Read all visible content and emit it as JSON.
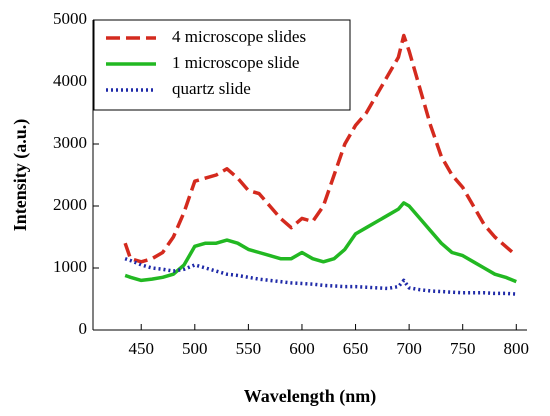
{
  "chart_data": {
    "type": "line",
    "xlabel": "Wavelength (nm)",
    "ylabel": "Intensity (a.u.)",
    "x": [
      435,
      440,
      450,
      460,
      470,
      480,
      490,
      500,
      510,
      520,
      530,
      540,
      550,
      560,
      570,
      580,
      590,
      600,
      610,
      620,
      630,
      640,
      650,
      660,
      670,
      680,
      690,
      695,
      700,
      710,
      720,
      730,
      740,
      750,
      760,
      770,
      780,
      790,
      800
    ],
    "series": [
      {
        "name": "4 microscope slides",
        "color": "#d42a1e",
        "dash": "14 6",
        "values": [
          1400,
          1150,
          1100,
          1150,
          1250,
          1500,
          1900,
          2400,
          2450,
          2500,
          2600,
          2450,
          2250,
          2200,
          2000,
          1800,
          1650,
          1800,
          1750,
          2000,
          2500,
          3000,
          3300,
          3500,
          3800,
          4100,
          4400,
          4750,
          4500,
          3900,
          3300,
          2800,
          2500,
          2300,
          2000,
          1700,
          1500,
          1350,
          1200
        ]
      },
      {
        "name": "1 microscope slide",
        "color": "#22b822",
        "dash": "none",
        "values": [
          880,
          850,
          800,
          820,
          850,
          900,
          1050,
          1350,
          1400,
          1400,
          1450,
          1400,
          1300,
          1250,
          1200,
          1150,
          1150,
          1250,
          1150,
          1100,
          1150,
          1300,
          1550,
          1650,
          1750,
          1850,
          1950,
          2050,
          2000,
          1800,
          1600,
          1400,
          1250,
          1200,
          1100,
          1000,
          900,
          850,
          780
        ]
      },
      {
        "name": "quartz slide",
        "color": "#1f2aa8",
        "dash": "2 3",
        "values": [
          1150,
          1120,
          1050,
          1000,
          980,
          950,
          980,
          1050,
          1000,
          950,
          900,
          880,
          850,
          820,
          800,
          780,
          760,
          750,
          740,
          720,
          710,
          700,
          700,
          690,
          680,
          670,
          700,
          800,
          680,
          650,
          630,
          620,
          610,
          600,
          600,
          600,
          590,
          590,
          580
        ]
      }
    ],
    "xlim": [
      405,
      810
    ],
    "xticks": [
      450,
      500,
      550,
      600,
      650,
      700,
      750,
      800
    ],
    "ylim": [
      0,
      5000
    ],
    "yticks": [
      0,
      1000,
      2000,
      3000,
      4000,
      5000
    ],
    "legend": "upper left"
  }
}
